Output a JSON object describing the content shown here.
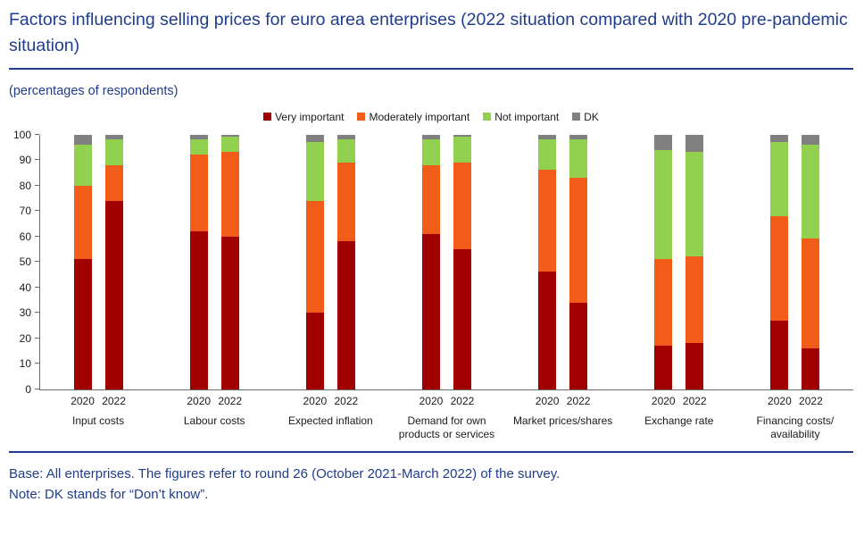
{
  "colors": {
    "accent_blue": "#1f3d8c",
    "very_important": "#a00000",
    "moderately_important": "#f25c19",
    "not_important": "#92d050",
    "dk": "#808080"
  },
  "header": {
    "title": "Factors influencing selling prices for euro area enterprises (2022 situation compared with 2020 pre-pandemic situation)",
    "subtitle": "(percentages of respondents)"
  },
  "footer": {
    "base": "Base: All enterprises. The figures refer to round 26 (October 2021-March 2022) of the survey.",
    "note": "Note: DK stands for “Don’t know”."
  },
  "chart_data": {
    "type": "bar",
    "stacked": true,
    "title": "Factors influencing selling prices for euro area enterprises (2022 situation compared with 2020 pre-pandemic situation)",
    "ylabel": "percentages of respondents",
    "ylim": [
      0,
      100
    ],
    "yticks": [
      0,
      10,
      20,
      30,
      40,
      50,
      60,
      70,
      80,
      90,
      100
    ],
    "legend_position": "top",
    "grid": false,
    "series_names": [
      "Very important",
      "Moderately important",
      "Not important",
      "DK"
    ],
    "series_colors": [
      "#a00000",
      "#f25c19",
      "#92d050",
      "#808080"
    ],
    "categories": [
      "Input costs",
      "Labour costs",
      "Expected inflation",
      "Demand for own products or services",
      "Market prices/shares",
      "Exchange rate",
      "Financing costs/ availability"
    ],
    "groups": [
      {
        "label": "Input costs",
        "bars": [
          {
            "x": "2020",
            "values": [
              51,
              29,
              16,
              4
            ]
          },
          {
            "x": "2022",
            "values": [
              74,
              14,
              10,
              2
            ]
          }
        ]
      },
      {
        "label": "Labour costs",
        "bars": [
          {
            "x": "2020",
            "values": [
              62,
              30,
              6,
              2
            ]
          },
          {
            "x": "2022",
            "values": [
              60,
              33,
              6,
              1
            ]
          }
        ]
      },
      {
        "label": "Expected inflation",
        "bars": [
          {
            "x": "2020",
            "values": [
              30,
              44,
              23,
              3
            ]
          },
          {
            "x": "2022",
            "values": [
              58,
              31,
              9,
              2
            ]
          }
        ]
      },
      {
        "label": "Demand for own products or services",
        "bars": [
          {
            "x": "2020",
            "values": [
              61,
              27,
              10,
              2
            ]
          },
          {
            "x": "2022",
            "values": [
              55,
              34,
              10,
              1
            ]
          }
        ]
      },
      {
        "label": "Market prices/shares",
        "bars": [
          {
            "x": "2020",
            "values": [
              46,
              40,
              12,
              2
            ]
          },
          {
            "x": "2022",
            "values": [
              34,
              49,
              15,
              2
            ]
          }
        ]
      },
      {
        "label": "Exchange rate",
        "bars": [
          {
            "x": "2020",
            "values": [
              17,
              34,
              43,
              6
            ]
          },
          {
            "x": "2022",
            "values": [
              18,
              34,
              41,
              7
            ]
          }
        ]
      },
      {
        "label": "Financing costs/ availability",
        "bars": [
          {
            "x": "2020",
            "values": [
              27,
              41,
              29,
              3
            ]
          },
          {
            "x": "2022",
            "values": [
              16,
              43,
              37,
              4
            ]
          }
        ]
      }
    ]
  }
}
